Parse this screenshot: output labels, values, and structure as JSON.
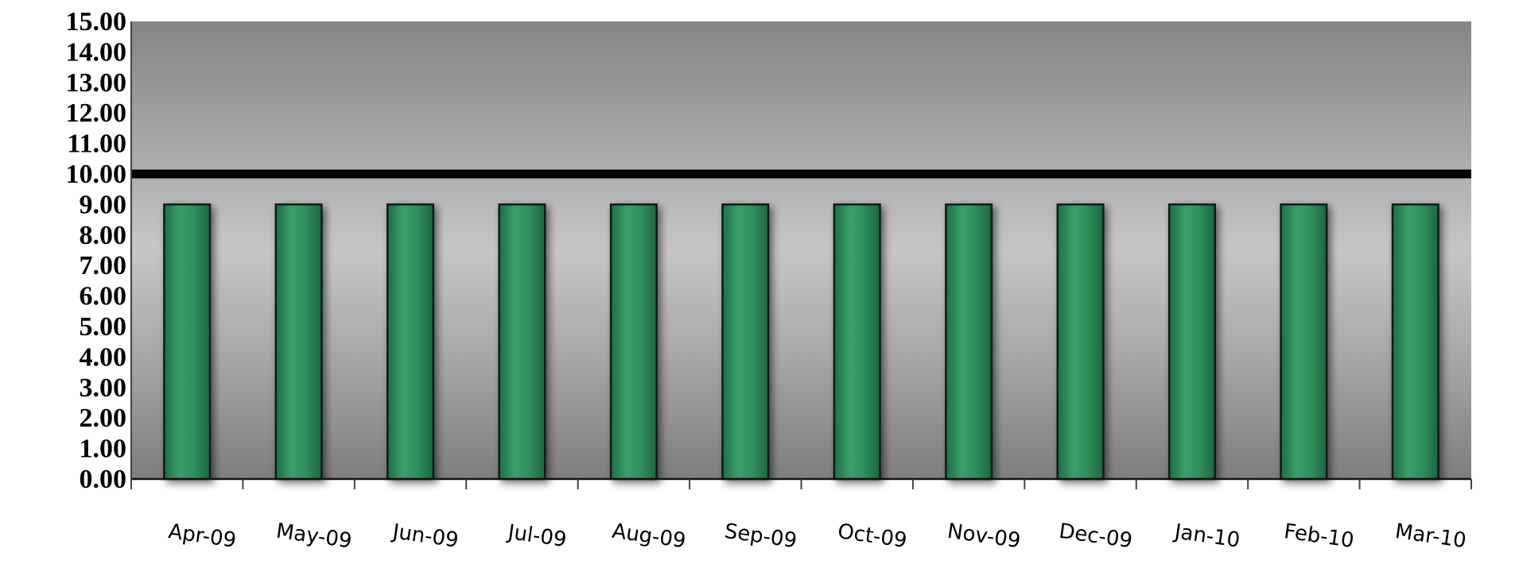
{
  "chart_data": {
    "type": "bar",
    "categories": [
      "Apr-09",
      "May-09",
      "Jun-09",
      "Jul-09",
      "Aug-09",
      "Sep-09",
      "Oct-09",
      "Nov-09",
      "Dec-09",
      "Jan-10",
      "Feb-10",
      "Mar-10"
    ],
    "series": [
      {
        "values": [
          9,
          9,
          9,
          9,
          9,
          9,
          9,
          9,
          9,
          9,
          9,
          9
        ],
        "color": "#2e8b57"
      }
    ],
    "reference_line": {
      "value": 10,
      "color": "#000000"
    },
    "ylim": [
      0,
      15
    ],
    "yticks": [
      "0.00",
      "1.00",
      "2.00",
      "3.00",
      "4.00",
      "5.00",
      "6.00",
      "7.00",
      "8.00",
      "9.00",
      "10.00",
      "11.00",
      "12.00",
      "13.00",
      "14.00",
      "15.00"
    ],
    "grid": false,
    "legend": "none",
    "title": "",
    "xlabel": "",
    "ylabel": "",
    "colors": {
      "bar_fill": "#2e8b57",
      "bar_stroke": "#0d1f14",
      "plot_background": "#a8a8a8",
      "reference_line": "#000000"
    }
  }
}
